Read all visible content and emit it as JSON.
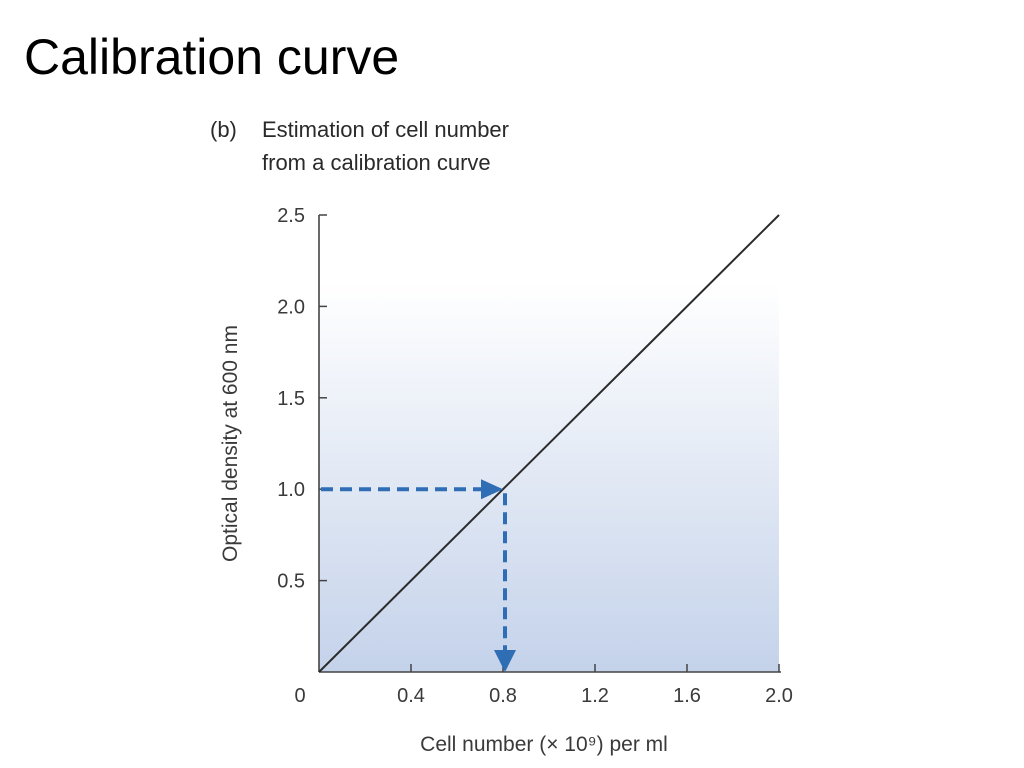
{
  "page": {
    "title": "Calibration curve"
  },
  "figure": {
    "panel_label": "(b)",
    "caption_lines": [
      "Estimation of cell number",
      "from a calibration curve"
    ]
  },
  "colors": {
    "line": "#2b2b2b",
    "axis": "#444444",
    "arrow": "#2f6db5",
    "fill_top": "#ffffff",
    "fill_bottom": "#c4d2ea"
  },
  "chart_data": {
    "type": "line",
    "title": "Estimation of cell number from a calibration curve",
    "xlabel": "Cell number (× 10⁹) per ml",
    "ylabel": "Optical density at 600 nm",
    "origin_label": "0",
    "xlim": [
      0,
      2.0
    ],
    "ylim": [
      0,
      2.5
    ],
    "x_ticks": [
      0.4,
      0.8,
      1.2,
      1.6,
      2.0
    ],
    "x_tick_labels": [
      "0.4",
      "0.8",
      "1.2",
      "1.6",
      "2.0"
    ],
    "y_ticks": [
      0.5,
      1.0,
      1.5,
      2.0,
      2.5
    ],
    "y_tick_labels": [
      "0.5",
      "1.0",
      "1.5",
      "2.0",
      "2.5"
    ],
    "grid": false,
    "series": [
      {
        "x": [
          0,
          2.0
        ],
        "y": [
          0,
          2.5
        ]
      }
    ],
    "annotations": [
      {
        "type": "dashed-arrow-lookup",
        "from_y": 1.0,
        "to_x": 0.8
      }
    ]
  }
}
